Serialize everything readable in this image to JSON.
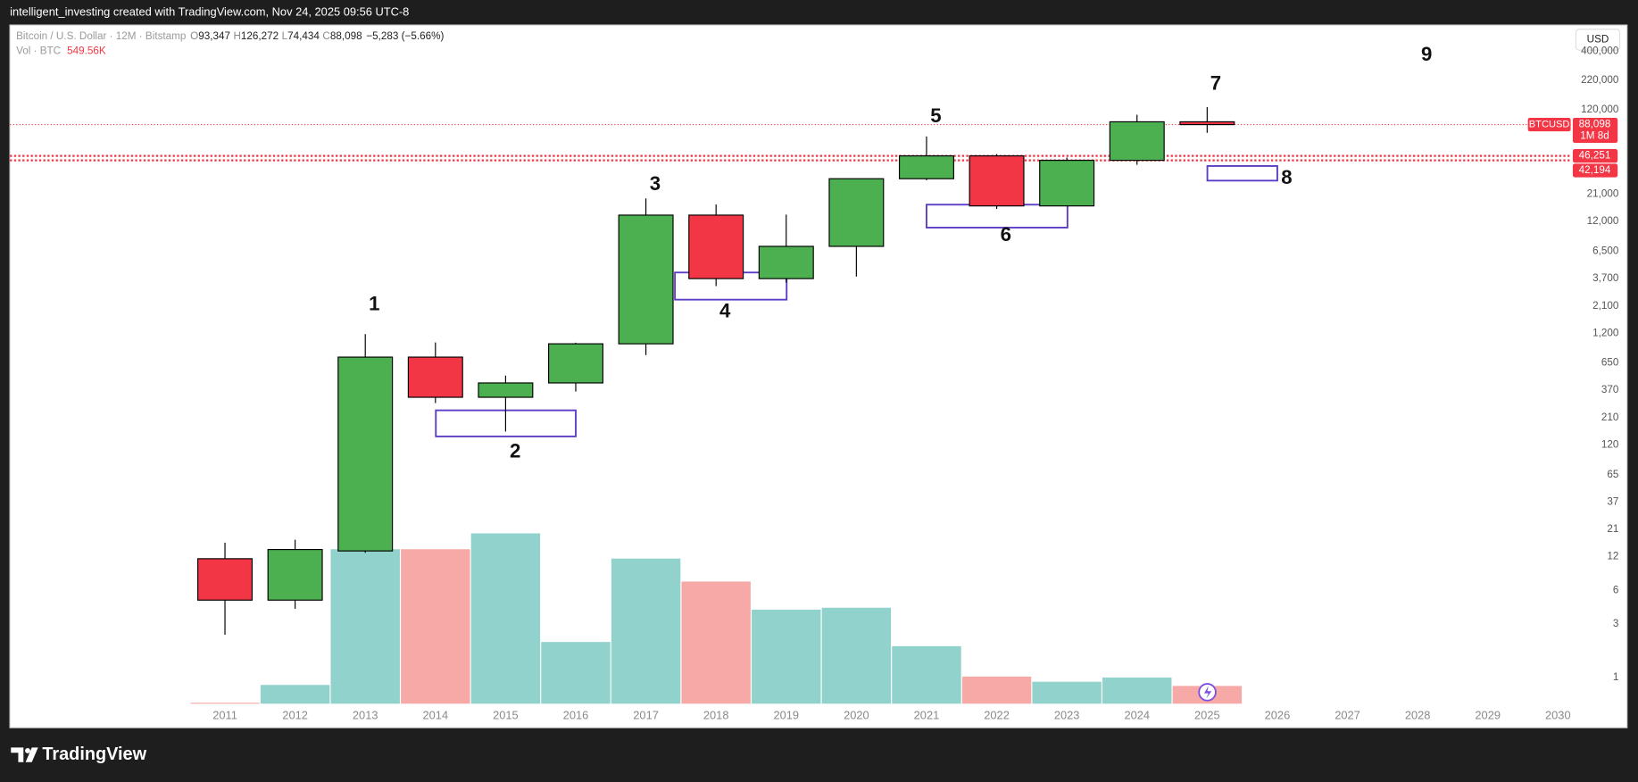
{
  "header": {
    "credit": "intelligent_investing created with TradingView.com, Nov 24, 2025 09:56 UTC-8",
    "currency": "USD",
    "brand": "TradingView"
  },
  "chart_data": {
    "type": "candlestick",
    "title": "Bitcoin / U.S. Dollar · 12M · Bitstamp",
    "legend": [
      {
        "key": "O",
        "value": "93,347"
      },
      {
        "key": "H",
        "value": "126,272"
      },
      {
        "key": "L",
        "value": "74,434"
      },
      {
        "key": "C",
        "value": "88,098"
      }
    ],
    "change": "−5,283 (−5.66%)",
    "categories": [
      "2011",
      "2012",
      "2013",
      "2014",
      "2015",
      "2016",
      "2017",
      "2018",
      "2019",
      "2020",
      "2021",
      "2022",
      "2023",
      "2024",
      "2025",
      "2026",
      "2027",
      "2028",
      "2029",
      "2030"
    ],
    "open": [
      11.5,
      4.9,
      13.5,
      732,
      320,
      430,
      963,
      13650,
      3690,
      7170,
      28900,
      46251,
      16500,
      42194,
      93347,
      null,
      null,
      null,
      null,
      null
    ],
    "high": [
      16,
      17,
      1177,
      990,
      500,
      985,
      19260,
      17000,
      13800,
      29000,
      69000,
      48000,
      44700,
      108000,
      126272,
      null,
      null,
      null,
      null,
      null
    ],
    "low": [
      2.4,
      4.1,
      13,
      284,
      158,
      360,
      764,
      3160,
      3400,
      3850,
      28000,
      15500,
      16500,
      38500,
      74434,
      null,
      null,
      null,
      null,
      null
    ],
    "close": [
      4.9,
      13.9,
      732,
      320,
      430,
      963,
      13650,
      3690,
      7170,
      28900,
      46251,
      16500,
      42194,
      93347,
      88098,
      null,
      null,
      null,
      null,
      null
    ],
    "up_color": "#4caf50",
    "down_color": "#f23645",
    "y_scale": "log",
    "ylim": [
      0.58,
      685000
    ],
    "yticks": [
      {
        "value": 400000,
        "label": "400,000"
      },
      {
        "value": 220000,
        "label": "220,000"
      },
      {
        "value": 120000,
        "label": "120,000"
      },
      {
        "value": 21000,
        "label": "21,000"
      },
      {
        "value": 12000,
        "label": "12,000"
      },
      {
        "value": 6500,
        "label": "6,500"
      },
      {
        "value": 3700,
        "label": "3,700"
      },
      {
        "value": 2100,
        "label": "2,100"
      },
      {
        "value": 1200,
        "label": "1,200"
      },
      650,
      370,
      210,
      120,
      65,
      37,
      21,
      12,
      6,
      3,
      1
    ],
    "volume": {
      "name": "Vol · BTC",
      "axis": "y2",
      "up_color": "#92d2cc",
      "down_color": "#f7a9a7",
      "values": [
        30000,
        580000,
        4780000,
        4780000,
        5270000,
        1910000,
        4490000,
        3780000,
        2910000,
        2970000,
        1780000,
        840000,
        680000,
        810000,
        549560,
        null,
        null,
        null,
        null,
        null
      ],
      "value_labels": [
        null,
        null,
        null,
        null,
        null,
        null,
        null,
        null,
        null,
        null,
        null,
        null,
        null,
        null,
        "549.56K",
        null,
        null,
        null,
        null,
        null
      ]
    },
    "y2lim": [
      0,
      21000000
    ],
    "price_lines": [
      {
        "name": "BTCUSD",
        "value": 88098,
        "label": "88,098",
        "countdown": "1M 8d"
      },
      {
        "value": 46251,
        "label": "46,251"
      },
      {
        "value": 42194,
        "label": "42,194"
      }
    ],
    "annotations": [
      "1",
      "2",
      "3",
      "4",
      "5",
      "6",
      "7",
      "8",
      "9"
    ]
  }
}
